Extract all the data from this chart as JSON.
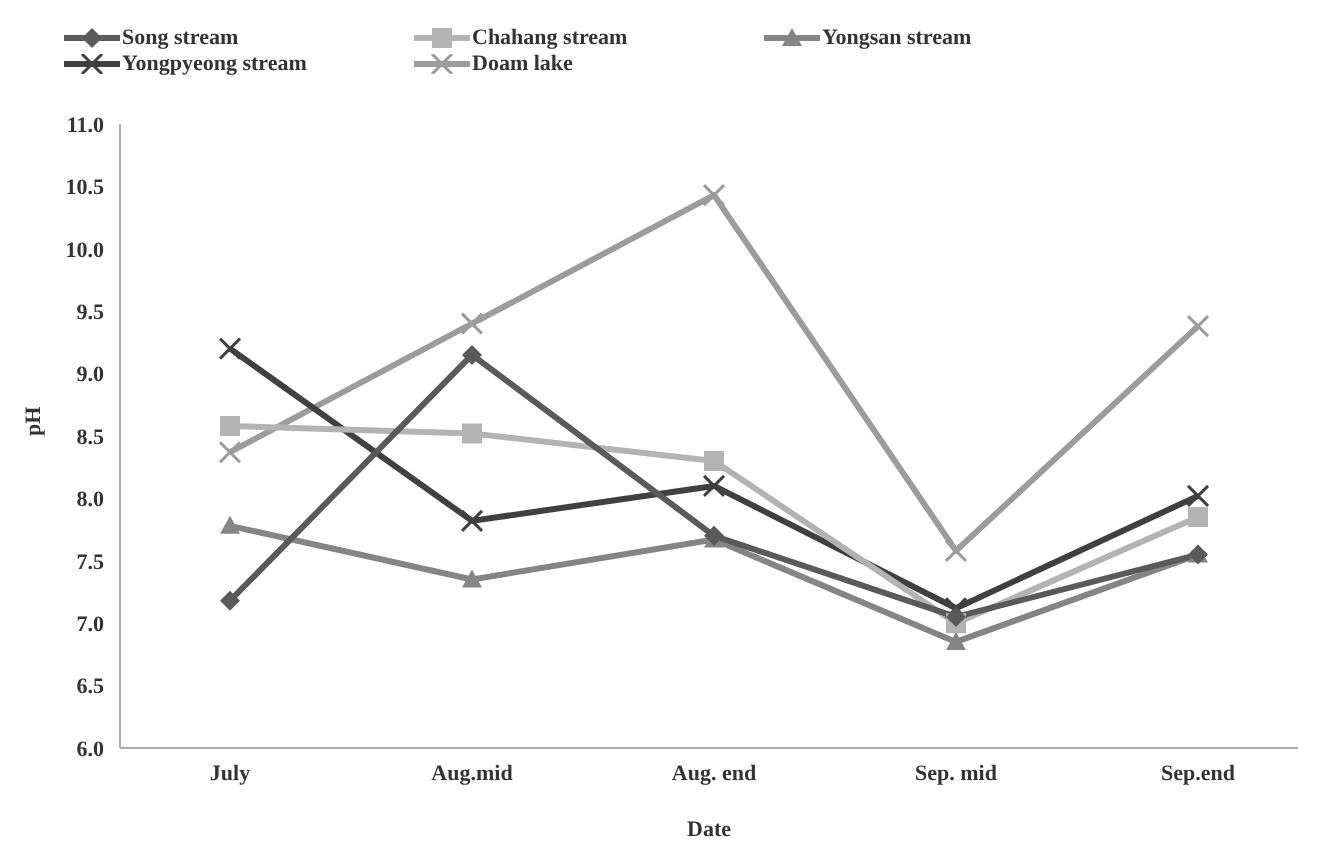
{
  "chart_data": {
    "type": "line",
    "xlabel": "Date",
    "ylabel": "pH",
    "categories": [
      "July",
      "Aug.mid",
      "Aug. end",
      "Sep. mid",
      "Sep.end"
    ],
    "series": [
      {
        "name": "Song stream",
        "color": "#5a5a5a",
        "marker": "diamond",
        "values": [
          7.18,
          9.15,
          7.7,
          7.05,
          7.55
        ]
      },
      {
        "name": "Chahang stream",
        "color": "#b3b3b3",
        "marker": "square",
        "values": [
          8.58,
          8.52,
          8.3,
          7.0,
          7.85
        ]
      },
      {
        "name": "Yongsan stream",
        "color": "#858585",
        "marker": "triangle",
        "values": [
          7.78,
          7.35,
          7.67,
          6.85,
          7.55
        ]
      },
      {
        "name": "Yongpyeong stream",
        "color": "#404040",
        "marker": "cross",
        "values": [
          9.2,
          7.82,
          8.1,
          7.12,
          8.02
        ]
      },
      {
        "name": "Doam lake",
        "color": "#9c9c9c",
        "marker": "cross",
        "values": [
          8.37,
          9.4,
          10.43,
          7.58,
          9.38
        ]
      }
    ],
    "ylim": [
      6.0,
      11.0
    ],
    "yticks": [
      {
        "value": 6,
        "label": "6.0"
      },
      {
        "value": 6.5,
        "label": "6.5"
      },
      {
        "value": 7,
        "label": "7.0"
      },
      {
        "value": 7.5,
        "label": "7.5"
      },
      {
        "value": 8,
        "label": "8.0"
      },
      {
        "value": 8.5,
        "label": "8.5"
      },
      {
        "value": 9,
        "label": "9.0"
      },
      {
        "value": 9.5,
        "label": "9.5"
      },
      {
        "value": 10,
        "label": "10.0"
      },
      {
        "value": 10.5,
        "label": "10.5"
      },
      {
        "value": 11,
        "label": "11.0"
      }
    ],
    "grid": false,
    "legend": "top",
    "line_style": "solid"
  }
}
